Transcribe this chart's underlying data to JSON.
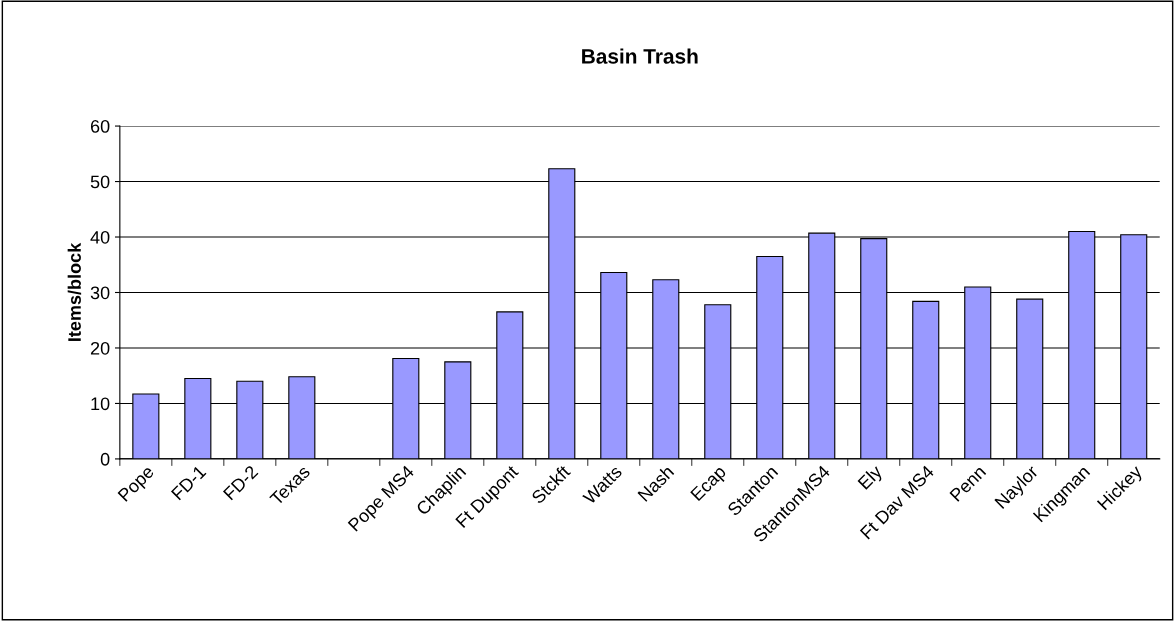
{
  "chart_data": {
    "type": "bar",
    "title": "Basin Trash",
    "ylabel": "Items/block",
    "categories": [
      "Pope",
      "FD-1",
      "FD-2",
      "Texas",
      null,
      "Pope MS4",
      "Chaplin",
      "Ft Dupont",
      "Stckft",
      "Watts",
      "Nash",
      "Ecap",
      "Stanton",
      "StantonMS4",
      "Ely",
      "Ft Dav MS4",
      "Penn",
      "Naylor",
      "Kingman",
      "Hickey"
    ],
    "values": [
      11.7,
      14.5,
      14.0,
      14.8,
      null,
      18.1,
      17.5,
      26.5,
      52.3,
      33.6,
      32.3,
      27.8,
      36.5,
      40.7,
      39.7,
      28.4,
      31.0,
      28.8,
      41.0,
      40.4
    ],
    "color": "#9999ff",
    "ylim": [
      0,
      60
    ],
    "yticks": [
      0,
      10,
      20,
      30,
      40,
      50,
      60
    ],
    "grid": "y"
  }
}
